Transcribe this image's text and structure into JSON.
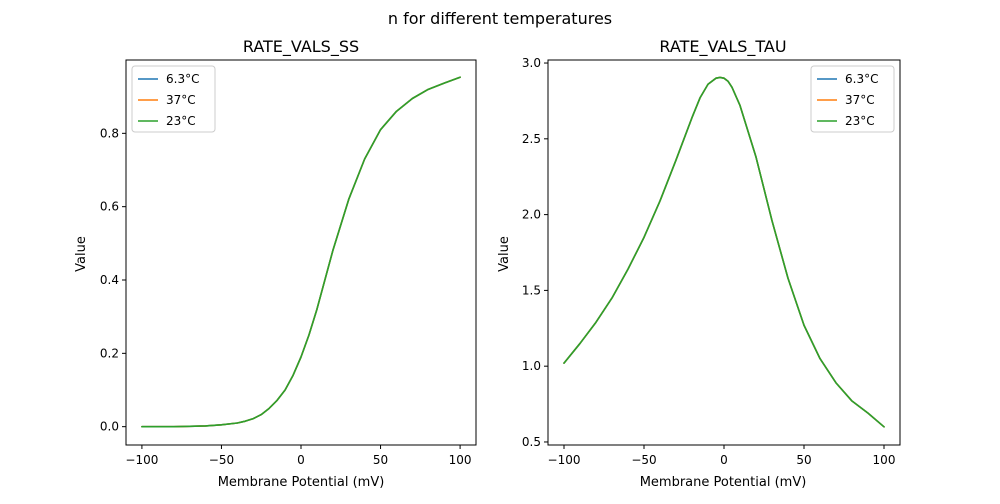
{
  "figure": {
    "suptitle": "n for different temperatures"
  },
  "chart_data": [
    {
      "type": "line",
      "title": "RATE_VALS_SS",
      "xlabel": "Membrane Potential (mV)",
      "ylabel": "Value",
      "xlim": [
        -110,
        110
      ],
      "ylim": [
        -0.05,
        1.0
      ],
      "xticks": [
        -100,
        -50,
        0,
        50,
        100
      ],
      "yticks": [
        0.0,
        0.2,
        0.4,
        0.6,
        0.8
      ],
      "tick_labels_x": [
        "−100",
        "−50",
        "0",
        "50",
        "100"
      ],
      "tick_labels_y": [
        "0.0",
        "0.2",
        "0.4",
        "0.6",
        "0.8"
      ],
      "grid": false,
      "legend_position": "top-left",
      "x": [
        -100,
        -90,
        -80,
        -70,
        -60,
        -50,
        -40,
        -35,
        -30,
        -25,
        -20,
        -15,
        -10,
        -5,
        0,
        5,
        10,
        20,
        30,
        40,
        50,
        60,
        70,
        80,
        90,
        100
      ],
      "series": [
        {
          "name": "6.3°C",
          "color": "#1f77b4",
          "values": [
            0.0,
            0.0,
            0.0,
            0.001,
            0.002,
            0.005,
            0.01,
            0.015,
            0.022,
            0.033,
            0.05,
            0.072,
            0.1,
            0.14,
            0.19,
            0.25,
            0.32,
            0.48,
            0.62,
            0.73,
            0.81,
            0.86,
            0.895,
            0.92,
            0.937,
            0.953
          ]
        },
        {
          "name": "37°C",
          "color": "#ff7f0e",
          "values": [
            0.0,
            0.0,
            0.0,
            0.001,
            0.002,
            0.005,
            0.01,
            0.015,
            0.022,
            0.033,
            0.05,
            0.072,
            0.1,
            0.14,
            0.19,
            0.25,
            0.32,
            0.48,
            0.62,
            0.73,
            0.81,
            0.86,
            0.895,
            0.92,
            0.937,
            0.953
          ]
        },
        {
          "name": "23°C",
          "color": "#2ca02c",
          "values": [
            0.0,
            0.0,
            0.0,
            0.001,
            0.002,
            0.005,
            0.01,
            0.015,
            0.022,
            0.033,
            0.05,
            0.072,
            0.1,
            0.14,
            0.19,
            0.25,
            0.32,
            0.48,
            0.62,
            0.73,
            0.81,
            0.86,
            0.895,
            0.92,
            0.937,
            0.953
          ]
        }
      ]
    },
    {
      "type": "line",
      "title": "RATE_VALS_TAU",
      "xlabel": "Membrane Potential (mV)",
      "ylabel": "Value",
      "xlim": [
        -110,
        110
      ],
      "ylim": [
        0.48,
        3.02
      ],
      "xticks": [
        -100,
        -50,
        0,
        50,
        100
      ],
      "yticks": [
        0.5,
        1.0,
        1.5,
        2.0,
        2.5,
        3.0
      ],
      "tick_labels_x": [
        "−100",
        "−50",
        "0",
        "50",
        "100"
      ],
      "tick_labels_y": [
        "0.5",
        "1.0",
        "1.5",
        "2.0",
        "2.5",
        "3.0"
      ],
      "grid": false,
      "legend_position": "top-right",
      "x": [
        -100,
        -90,
        -80,
        -70,
        -60,
        -50,
        -40,
        -30,
        -20,
        -15,
        -10,
        -5,
        -2.5,
        0,
        2.5,
        5,
        10,
        20,
        30,
        40,
        50,
        60,
        70,
        80,
        90,
        100
      ],
      "series": [
        {
          "name": "6.3°C",
          "color": "#1f77b4",
          "values": [
            1.02,
            1.15,
            1.29,
            1.45,
            1.64,
            1.85,
            2.09,
            2.36,
            2.64,
            2.77,
            2.86,
            2.9,
            2.905,
            2.9,
            2.88,
            2.84,
            2.72,
            2.38,
            1.96,
            1.58,
            1.27,
            1.05,
            0.89,
            0.77,
            0.69,
            0.6
          ]
        },
        {
          "name": "37°C",
          "color": "#ff7f0e",
          "values": [
            1.02,
            1.15,
            1.29,
            1.45,
            1.64,
            1.85,
            2.09,
            2.36,
            2.64,
            2.77,
            2.86,
            2.9,
            2.905,
            2.9,
            2.88,
            2.84,
            2.72,
            2.38,
            1.96,
            1.58,
            1.27,
            1.05,
            0.89,
            0.77,
            0.69,
            0.6
          ]
        },
        {
          "name": "23°C",
          "color": "#2ca02c",
          "values": [
            1.02,
            1.15,
            1.29,
            1.45,
            1.64,
            1.85,
            2.09,
            2.36,
            2.64,
            2.77,
            2.86,
            2.9,
            2.905,
            2.9,
            2.88,
            2.84,
            2.72,
            2.38,
            1.96,
            1.58,
            1.27,
            1.05,
            0.89,
            0.77,
            0.69,
            0.6
          ]
        }
      ]
    }
  ]
}
